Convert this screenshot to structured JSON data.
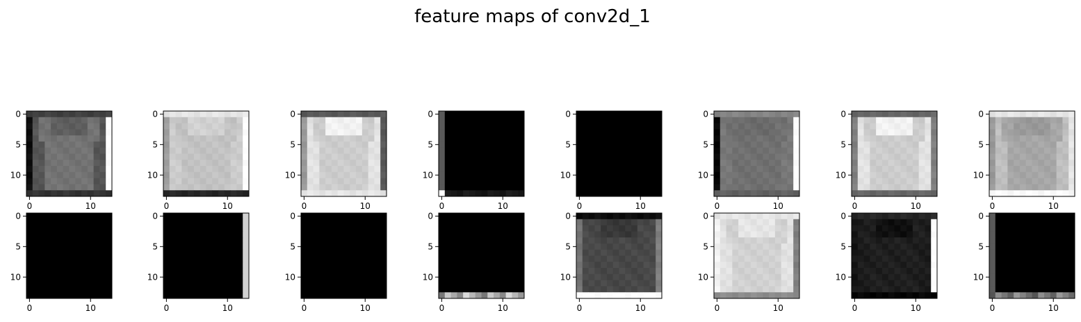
{
  "chart_data": {
    "type": "heatmap",
    "title": "feature maps of conv2d_1",
    "colormap": "gray",
    "grid": false,
    "layout": {
      "rows": 2,
      "cols": 8
    },
    "map_size": [
      14,
      14
    ],
    "x_tick_values": [
      0,
      10
    ],
    "y_tick_values": [
      0,
      5,
      10
    ],
    "x_tick_labels": [
      "0",
      "10"
    ],
    "y_tick_labels": [
      "0",
      "5",
      "10"
    ],
    "xlim": [
      -0.5,
      13.5
    ],
    "ylim": [
      13.5,
      -0.5
    ],
    "panels": [
      {
        "name": "map-1",
        "pattern": "shirt",
        "params": {
          "bg": 0.22,
          "body": 0.45,
          "collar": 0.37,
          "left": 0.05,
          "right": 1.0,
          "top": 0.25,
          "bottom": 0.2
        }
      },
      {
        "name": "map-2",
        "pattern": "shirt",
        "params": {
          "bg": 0.84,
          "body": 0.76,
          "collar": 0.82,
          "left": 0.62,
          "right": 1.0,
          "top": 0.9,
          "bottom": 0.15
        }
      },
      {
        "name": "map-3",
        "pattern": "shirt",
        "params": {
          "bg": 0.98,
          "body": 0.8,
          "collar": 0.95,
          "left": 0.6,
          "right": 0.35,
          "top": 0.35,
          "bottom": 0.9
        }
      },
      {
        "name": "map-4",
        "pattern": "dark",
        "params": {
          "bg": 0.0,
          "left": 0.35,
          "corner": 1.0,
          "bottom": 0.12
        }
      },
      {
        "name": "map-5",
        "pattern": "dark",
        "params": {
          "bg": 0.0
        }
      },
      {
        "name": "map-6",
        "pattern": "shirt",
        "params": {
          "bg": 0.5,
          "body": 0.44,
          "collar": 0.42,
          "left": 0.02,
          "right": 1.0,
          "top": 0.52,
          "bottom": 0.38
        }
      },
      {
        "name": "map-7",
        "pattern": "shirt",
        "params": {
          "bg": 0.98,
          "body": 0.8,
          "collar": 0.95,
          "left": 0.5,
          "right": 0.5,
          "top": 0.4,
          "bottom": 0.4
        }
      },
      {
        "name": "map-8",
        "pattern": "shirt",
        "params": {
          "bg": 0.85,
          "body": 0.65,
          "collar": 0.6,
          "left": 0.6,
          "right": 0.9,
          "top": 0.9,
          "bottom": 0.98
        }
      },
      {
        "name": "map-9",
        "pattern": "dark",
        "params": {
          "bg": 0.0
        }
      },
      {
        "name": "map-10",
        "pattern": "dark",
        "params": {
          "bg": 0.0,
          "right": 0.82
        }
      },
      {
        "name": "map-11",
        "pattern": "dark",
        "params": {
          "bg": 0.0
        }
      },
      {
        "name": "map-12",
        "pattern": "dark",
        "params": {
          "bg": 0.0,
          "bottom": 0.85
        }
      },
      {
        "name": "map-13",
        "pattern": "shirt",
        "params": {
          "bg": 0.3,
          "body": 0.28,
          "collar": 0.22,
          "left": 0.45,
          "right": 0.5,
          "top": 0.05,
          "bottom": 1.0
        }
      },
      {
        "name": "map-14",
        "pattern": "shirt",
        "params": {
          "bg": 0.95,
          "body": 0.82,
          "collar": 0.9,
          "left": 0.95,
          "right": 0.5,
          "top": 0.9,
          "bottom": 0.55
        }
      },
      {
        "name": "map-15",
        "pattern": "shirt",
        "params": {
          "bg": 0.1,
          "body": 0.12,
          "collar": 0.06,
          "left": 0.08,
          "right": 1.0,
          "top": 0.15,
          "bottom": 0.02
        }
      },
      {
        "name": "map-16",
        "pattern": "dark",
        "params": {
          "bg": 0.0,
          "left": 0.35,
          "bottom": 0.6
        }
      }
    ]
  }
}
